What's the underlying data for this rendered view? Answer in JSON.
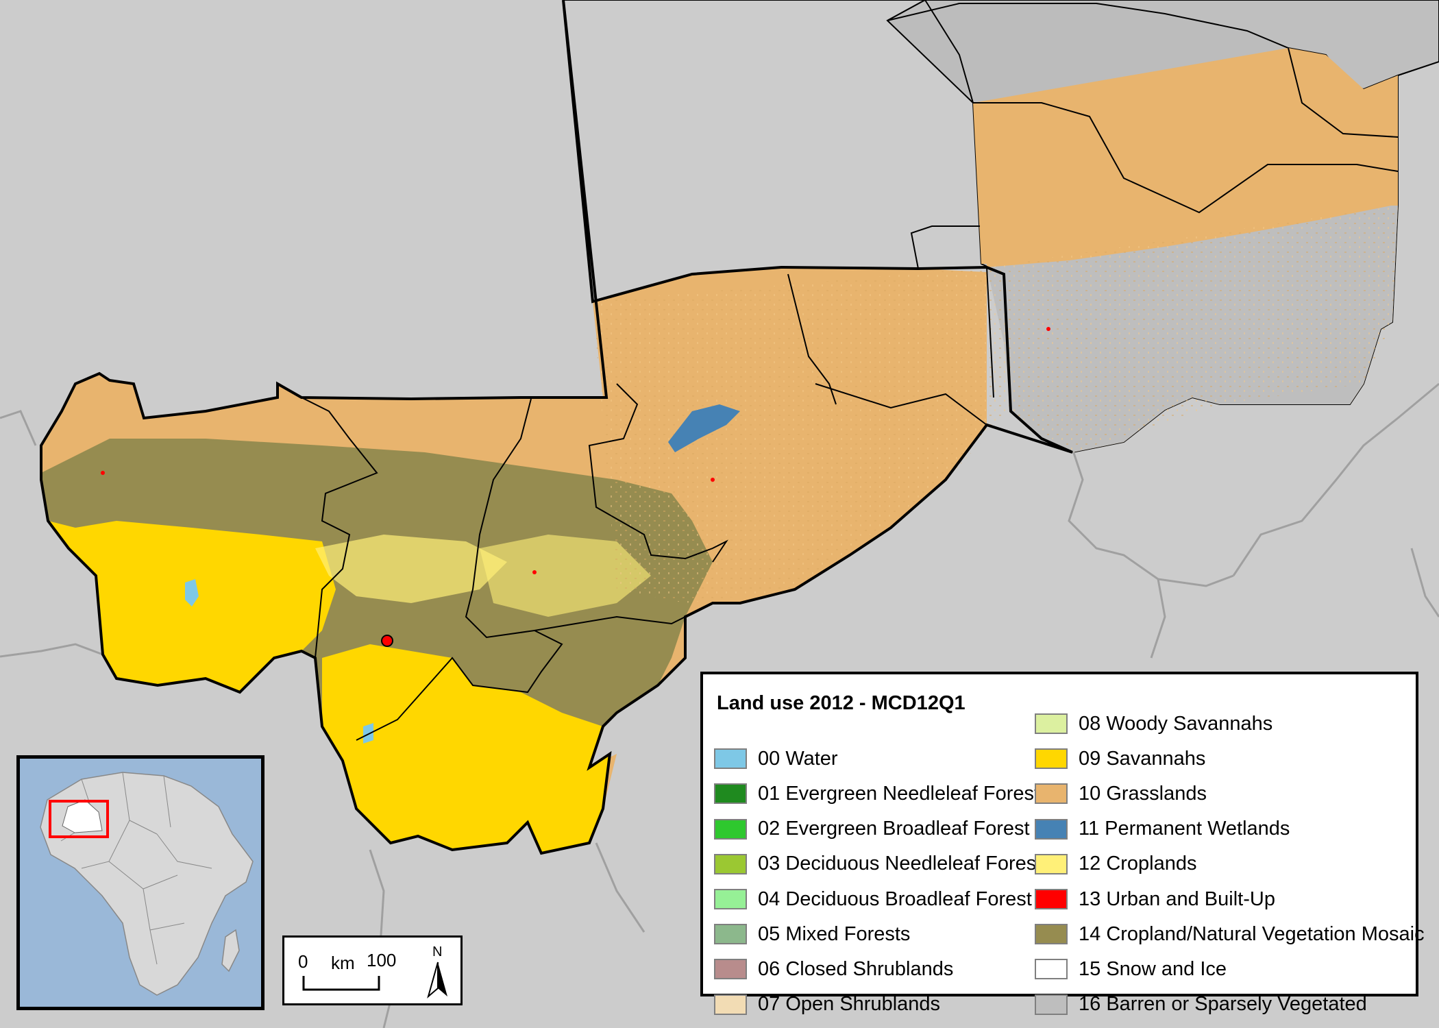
{
  "legend": {
    "title": "Land use 2012 - MCD12Q1",
    "items": [
      {
        "code": "00",
        "label": "00 Water",
        "color": "#7ec8e6"
      },
      {
        "code": "01",
        "label": "01 Evergreen Needleleaf Forest",
        "color": "#1f8a1f"
      },
      {
        "code": "02",
        "label": "02 Evergreen Broadleaf Forest",
        "color": "#2ec82e"
      },
      {
        "code": "03",
        "label": "03 Deciduous Needleleaf Forest",
        "color": "#9bc832"
      },
      {
        "code": "04",
        "label": "04 Deciduous Broadleaf Forest",
        "color": "#96f096"
      },
      {
        "code": "05",
        "label": "05 Mixed Forests",
        "color": "#8cb88c"
      },
      {
        "code": "06",
        "label": "06 Closed Shrublands",
        "color": "#b88c8c"
      },
      {
        "code": "07",
        "label": "07 Open Shrublands",
        "color": "#f2dcb4"
      },
      {
        "code": "08",
        "label": "08 Woody Savannahs",
        "color": "#dcf0a0"
      },
      {
        "code": "09",
        "label": "09 Savannahs",
        "color": "#ffd700"
      },
      {
        "code": "10",
        "label": "10 Grasslands",
        "color": "#e8b46e"
      },
      {
        "code": "11",
        "label": "11 Permanent Wetlands",
        "color": "#4682b4"
      },
      {
        "code": "12",
        "label": "12 Croplands",
        "color": "#fff078"
      },
      {
        "code": "13",
        "label": "13 Urban and Built-Up",
        "color": "#ff0000"
      },
      {
        "code": "14",
        "label": "14 Cropland/Natural Vegetation Mosaic",
        "color": "#968c50"
      },
      {
        "code": "15",
        "label": "15 Snow and Ice",
        "color": "#ffffff"
      },
      {
        "code": "16",
        "label": "16 Barren or Sparsely Vegetated",
        "color": "#bebebe"
      }
    ]
  },
  "scale_bar": {
    "start": "0",
    "unit": "km",
    "end": "100",
    "north": "N"
  },
  "colors": {
    "background": "#cccccc",
    "neighbor_fill": "#bcbcbc",
    "admin_lines": "#a0a0a0",
    "boundary": "#000000",
    "inset_ocean": "#9ab8d8",
    "inset_land": "#d8d8d8",
    "inset_highlight": "#ff0000"
  }
}
